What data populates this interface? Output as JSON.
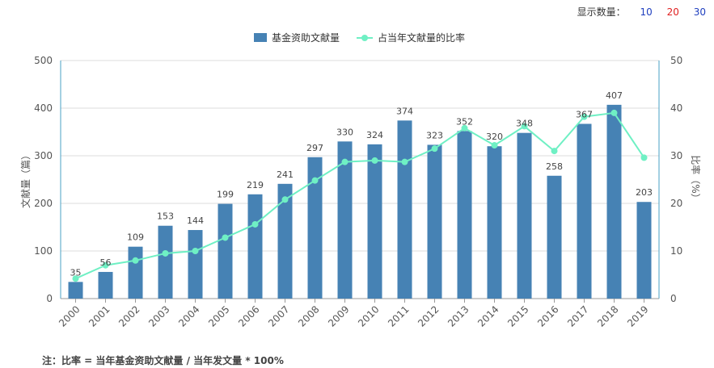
{
  "controls": {
    "display_label": "显示数量：",
    "options": [
      {
        "label": "10",
        "color": "#1f3fbf"
      },
      {
        "label": "20",
        "color": "#e02020"
      },
      {
        "label": "30",
        "color": "#1f3fbf"
      }
    ]
  },
  "footnote": "注：比率 = 当年基金资助文献量 / 当年发文量 * 100%",
  "colors": {
    "bar": "#4682b4",
    "line": "#6ff0c4",
    "axis": "#4aa0c4",
    "grid": "#dddddd"
  },
  "chart_data": {
    "type": "bar",
    "categories": [
      "2000",
      "2001",
      "2002",
      "2003",
      "2004",
      "2005",
      "2006",
      "2007",
      "2008",
      "2009",
      "2010",
      "2011",
      "2012",
      "2013",
      "2014",
      "2015",
      "2016",
      "2017",
      "2018",
      "2019"
    ],
    "series": [
      {
        "name": "基金资助文献量",
        "type": "bar",
        "axis": "left",
        "values": [
          35,
          56,
          109,
          153,
          144,
          199,
          219,
          241,
          297,
          330,
          324,
          374,
          323,
          352,
          320,
          348,
          258,
          367,
          407,
          203
        ]
      },
      {
        "name": "占当年文献量的比率",
        "type": "line",
        "axis": "right",
        "values": [
          4.2,
          7.0,
          8.0,
          9.5,
          10.0,
          12.8,
          15.6,
          20.8,
          24.8,
          28.7,
          29.0,
          28.7,
          31.5,
          35.8,
          32.2,
          36.2,
          31.0,
          38.2,
          39.0,
          29.6
        ]
      }
    ],
    "ylabel": "文献量（篇）",
    "y2label": "比率（%）",
    "ylim": [
      0,
      500
    ],
    "yticks": [
      "0",
      "100",
      "200",
      "300",
      "400",
      "500"
    ],
    "y2lim": [
      0,
      50
    ],
    "y2ticks": [
      "0",
      "10",
      "20",
      "30",
      "40",
      "50"
    ],
    "grid": true,
    "legend_position": "top-center"
  }
}
